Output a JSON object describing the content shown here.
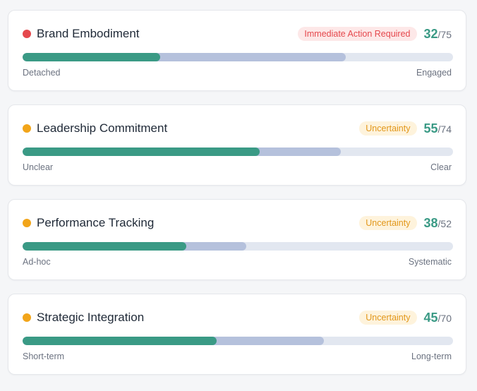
{
  "colors": {
    "accent": "#3a9a85",
    "track": "#e2e7f0",
    "secondary_fill": "#b5c1dc",
    "danger": "#e5484d",
    "warning": "#f2a51a"
  },
  "cards": [
    {
      "title": "Brand Embodiment",
      "dot_color": "#e5484d",
      "badge": "Immediate Action Required",
      "badge_type": "danger",
      "score": "32",
      "max": "/75",
      "score_fraction": 0.32,
      "secondary_fraction": 0.75,
      "left_label": "Detached",
      "right_label": "Engaged"
    },
    {
      "title": "Leadership Commitment",
      "dot_color": "#f2a51a",
      "badge": "Uncertainty",
      "badge_type": "warning",
      "score": "55",
      "max": "/74",
      "score_fraction": 0.55,
      "secondary_fraction": 0.74,
      "left_label": "Unclear",
      "right_label": "Clear"
    },
    {
      "title": "Performance Tracking",
      "dot_color": "#f2a51a",
      "badge": "Uncertainty",
      "badge_type": "warning",
      "score": "38",
      "max": "/52",
      "score_fraction": 0.38,
      "secondary_fraction": 0.52,
      "left_label": "Ad-hoc",
      "right_label": "Systematic"
    },
    {
      "title": "Strategic Integration",
      "dot_color": "#f2a51a",
      "badge": "Uncertainty",
      "badge_type": "warning",
      "score": "45",
      "max": "/70",
      "score_fraction": 0.45,
      "secondary_fraction": 0.7,
      "left_label": "Short-term",
      "right_label": "Long-term"
    }
  ]
}
